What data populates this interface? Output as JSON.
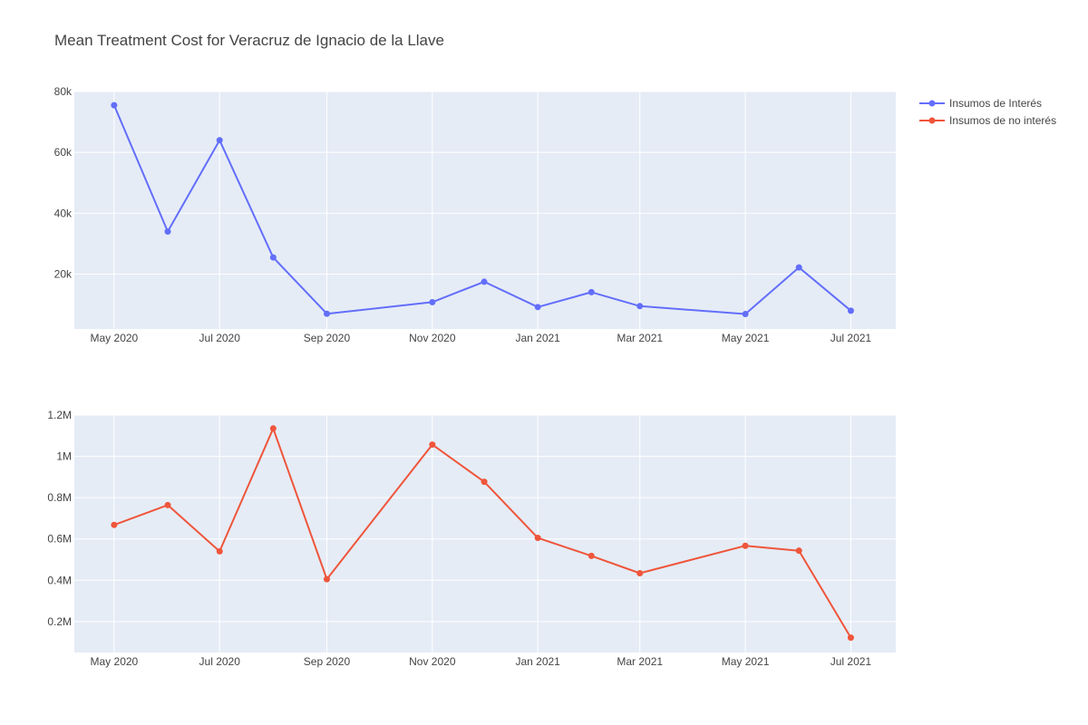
{
  "title": "Mean Treatment Cost for Veracruz de Ignacio de la Llave",
  "colors": {
    "plot_bg": "#E5ECF6",
    "grid": "#ffffff",
    "series_interes": "#636EFA",
    "series_no_interes": "#EF553B"
  },
  "legend": {
    "placement": "top-right",
    "items": [
      {
        "label": "Insumos de Interés",
        "color": "#636EFA"
      },
      {
        "label": "Insumos de no interés",
        "color": "#EF553B"
      }
    ]
  },
  "chart_data": [
    {
      "type": "line",
      "x_axis": {
        "type": "date",
        "range": [
          "2020-04-08",
          "2021-07-27"
        ],
        "ticks": [
          {
            "value": "2020-05-01",
            "label": "May 2020"
          },
          {
            "value": "2020-07-01",
            "label": "Jul 2020"
          },
          {
            "value": "2020-09-01",
            "label": "Sep 2020"
          },
          {
            "value": "2020-11-01",
            "label": "Nov 2020"
          },
          {
            "value": "2021-01-01",
            "label": "Jan 2021"
          },
          {
            "value": "2021-03-01",
            "label": "Mar 2021"
          },
          {
            "value": "2021-05-01",
            "label": "May 2021"
          },
          {
            "value": "2021-07-01",
            "label": "Jul 2021"
          }
        ]
      },
      "y_axis": {
        "range": [
          2000,
          80000
        ],
        "ticks": [
          {
            "value": 20000,
            "label": "20k"
          },
          {
            "value": 40000,
            "label": "40k"
          },
          {
            "value": 60000,
            "label": "60k"
          },
          {
            "value": 80000,
            "label": "80k"
          }
        ]
      },
      "grid": true,
      "series": [
        {
          "name": "Insumos de Interés",
          "color": "#636EFA",
          "x": [
            "2020-05-01",
            "2020-06-01",
            "2020-07-01",
            "2020-08-01",
            "2020-09-01",
            "2020-11-01",
            "2020-12-01",
            "2021-01-01",
            "2021-02-01",
            "2021-03-01",
            "2021-05-01",
            "2021-06-01",
            "2021-07-01"
          ],
          "y": [
            75500,
            34000,
            64000,
            25500,
            7000,
            10800,
            17500,
            9200,
            14100,
            9500,
            6900,
            22200,
            8000
          ]
        }
      ]
    },
    {
      "type": "line",
      "x_axis": {
        "type": "date",
        "range": [
          "2020-04-08",
          "2021-07-27"
        ],
        "ticks": [
          {
            "value": "2020-05-01",
            "label": "May 2020"
          },
          {
            "value": "2020-07-01",
            "label": "Jul 2020"
          },
          {
            "value": "2020-09-01",
            "label": "Sep 2020"
          },
          {
            "value": "2020-11-01",
            "label": "Nov 2020"
          },
          {
            "value": "2021-01-01",
            "label": "Jan 2021"
          },
          {
            "value": "2021-03-01",
            "label": "Mar 2021"
          },
          {
            "value": "2021-05-01",
            "label": "May 2021"
          },
          {
            "value": "2021-07-01",
            "label": "Jul 2021"
          }
        ]
      },
      "y_axis": {
        "range": [
          50000,
          1200000
        ],
        "ticks": [
          {
            "value": 200000,
            "label": "0.2M"
          },
          {
            "value": 400000,
            "label": "0.4M"
          },
          {
            "value": 600000,
            "label": "0.6M"
          },
          {
            "value": 800000,
            "label": "0.8M"
          },
          {
            "value": 1000000,
            "label": "1M"
          },
          {
            "value": 1200000,
            "label": "1.2M"
          }
        ]
      },
      "grid": true,
      "series": [
        {
          "name": "Insumos de no interés",
          "color": "#EF553B",
          "x": [
            "2020-05-01",
            "2020-06-01",
            "2020-07-01",
            "2020-08-01",
            "2020-09-01",
            "2020-11-01",
            "2020-12-01",
            "2021-01-01",
            "2021-02-01",
            "2021-03-01",
            "2021-05-01",
            "2021-06-01",
            "2021-07-01"
          ],
          "y": [
            668000,
            764000,
            540000,
            1135000,
            405000,
            1057000,
            877000,
            605000,
            518000,
            434000,
            567000,
            543000,
            122000
          ]
        }
      ]
    }
  ]
}
